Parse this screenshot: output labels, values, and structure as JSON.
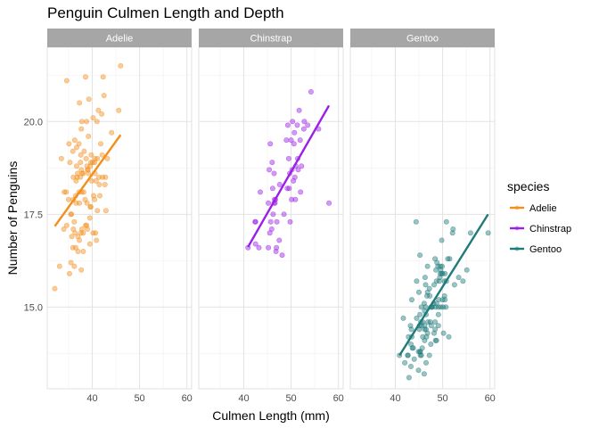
{
  "chart_data": {
    "type": "scatter",
    "title": "Penguin Culmen Length and Depth",
    "xlabel": "Culmen Length (mm)",
    "ylabel": "Number of Penguins",
    "xlim": [
      30.5,
      61
    ],
    "ylim": [
      12.8,
      22.0
    ],
    "x_ticks": [
      40,
      50,
      60
    ],
    "y_ticks": [
      15.0,
      17.5,
      20.0
    ],
    "y_tick_labels": [
      "15.0",
      "17.5",
      "20.0"
    ],
    "facet_by": "species",
    "grid": true,
    "legend": {
      "title": "species",
      "position": "right"
    },
    "series": [
      {
        "name": "Adelie",
        "color": "#F28E1C",
        "trend": {
          "x": [
            32.1,
            46.0
          ],
          "y": [
            17.18,
            19.64
          ]
        },
        "points": [
          [
            32.1,
            15.5
          ],
          [
            33.1,
            16.1
          ],
          [
            33.5,
            19.0
          ],
          [
            34.0,
            17.1
          ],
          [
            34.1,
            18.1
          ],
          [
            34.5,
            18.1
          ],
          [
            34.6,
            21.1
          ],
          [
            34.6,
            17.2
          ],
          [
            35.0,
            17.9
          ],
          [
            35.1,
            19.4
          ],
          [
            35.2,
            15.9
          ],
          [
            35.3,
            18.9
          ],
          [
            35.5,
            16.2
          ],
          [
            35.5,
            17.5
          ],
          [
            35.6,
            17.5
          ],
          [
            35.7,
            16.9
          ],
          [
            35.9,
            19.2
          ],
          [
            35.9,
            16.6
          ],
          [
            36.0,
            18.5
          ],
          [
            36.0,
            17.9
          ],
          [
            36.0,
            17.1
          ],
          [
            36.2,
            17.3
          ],
          [
            36.2,
            16.1
          ],
          [
            36.3,
            19.5
          ],
          [
            36.4,
            17.0
          ],
          [
            36.5,
            18.0
          ],
          [
            36.5,
            16.6
          ],
          [
            36.6,
            17.8
          ],
          [
            36.6,
            18.4
          ],
          [
            36.7,
            19.3
          ],
          [
            36.7,
            18.8
          ],
          [
            36.8,
            18.5
          ],
          [
            36.9,
            18.6
          ],
          [
            37.0,
            16.9
          ],
          [
            37.0,
            16.5
          ],
          [
            37.2,
            18.1
          ],
          [
            37.2,
            19.4
          ],
          [
            37.3,
            20.5
          ],
          [
            37.3,
            17.8
          ],
          [
            37.3,
            16.8
          ],
          [
            37.5,
            18.9
          ],
          [
            37.5,
            18.5
          ],
          [
            37.6,
            19.1
          ],
          [
            37.6,
            17.0
          ],
          [
            37.7,
            18.7
          ],
          [
            37.7,
            16.0
          ],
          [
            37.7,
            19.8
          ],
          [
            37.8,
            18.1
          ],
          [
            37.8,
            17.1
          ],
          [
            37.8,
            20.0
          ],
          [
            37.9,
            18.6
          ],
          [
            38.1,
            18.6
          ],
          [
            38.1,
            17.0
          ],
          [
            38.1,
            16.5
          ],
          [
            38.2,
            18.1
          ],
          [
            38.3,
            19.2
          ],
          [
            38.5,
            17.9
          ],
          [
            38.6,
            21.2
          ],
          [
            38.6,
            17.2
          ],
          [
            38.7,
            19.0
          ],
          [
            38.8,
            17.2
          ],
          [
            38.8,
            20.0
          ],
          [
            38.9,
            17.8
          ],
          [
            38.9,
            18.8
          ],
          [
            39.0,
            17.1
          ],
          [
            39.0,
            18.7
          ],
          [
            39.1,
            18.7
          ],
          [
            39.2,
            19.6
          ],
          [
            39.2,
            18.6
          ],
          [
            39.3,
            20.6
          ],
          [
            39.5,
            17.4
          ],
          [
            39.5,
            16.7
          ],
          [
            39.6,
            17.7
          ],
          [
            39.6,
            18.8
          ],
          [
            39.7,
            18.9
          ],
          [
            39.7,
            17.7
          ],
          [
            39.8,
            19.1
          ],
          [
            39.9,
            18.4
          ],
          [
            40.1,
            18.9
          ],
          [
            40.2,
            17.0
          ],
          [
            40.2,
            20.1
          ],
          [
            40.3,
            18.0
          ],
          [
            40.5,
            17.9
          ],
          [
            40.5,
            18.9
          ],
          [
            40.6,
            18.6
          ],
          [
            40.6,
            19.0
          ],
          [
            40.7,
            17.0
          ],
          [
            40.8,
            18.4
          ],
          [
            40.9,
            16.8
          ],
          [
            41.0,
            20.0
          ],
          [
            41.1,
            17.6
          ],
          [
            41.1,
            19.0
          ],
          [
            41.3,
            20.3
          ],
          [
            41.4,
            18.5
          ],
          [
            41.5,
            18.3
          ],
          [
            41.6,
            18.0
          ],
          [
            41.8,
            19.4
          ],
          [
            42.0,
            20.2
          ],
          [
            42.1,
            19.1
          ],
          [
            42.2,
            18.5
          ],
          [
            42.3,
            21.2
          ],
          [
            42.5,
            20.7
          ],
          [
            42.7,
            18.3
          ],
          [
            42.8,
            18.5
          ],
          [
            42.9,
            17.6
          ],
          [
            43.2,
            19.0
          ],
          [
            44.1,
            19.7
          ],
          [
            45.6,
            20.3
          ],
          [
            46.0,
            21.5
          ]
        ]
      },
      {
        "name": "Chinstrap",
        "color": "#9B1FE8",
        "trend": {
          "x": [
            40.9,
            58.0
          ],
          "y": [
            16.62,
            20.43
          ]
        },
        "points": [
          [
            40.9,
            16.6
          ],
          [
            42.4,
            17.3
          ],
          [
            42.5,
            16.7
          ],
          [
            42.5,
            17.3
          ],
          [
            43.2,
            16.6
          ],
          [
            43.5,
            18.1
          ],
          [
            45.2,
            16.6
          ],
          [
            45.2,
            17.8
          ],
          [
            45.4,
            18.7
          ],
          [
            45.5,
            17.0
          ],
          [
            45.6,
            19.4
          ],
          [
            45.7,
            17.3
          ],
          [
            45.9,
            17.1
          ],
          [
            46.0,
            18.9
          ],
          [
            46.1,
            18.2
          ],
          [
            46.2,
            17.5
          ],
          [
            46.4,
            18.6
          ],
          [
            46.4,
            17.8
          ],
          [
            46.5,
            17.9
          ],
          [
            46.6,
            17.8
          ],
          [
            46.7,
            17.9
          ],
          [
            46.8,
            16.5
          ],
          [
            46.9,
            16.6
          ],
          [
            47.0,
            17.3
          ],
          [
            47.5,
            16.8
          ],
          [
            47.6,
            18.3
          ],
          [
            48.1,
            16.4
          ],
          [
            48.5,
            17.5
          ],
          [
            49.0,
            19.5
          ],
          [
            49.2,
            18.2
          ],
          [
            49.3,
            19.9
          ],
          [
            49.5,
            19.0
          ],
          [
            49.6,
            18.2
          ],
          [
            49.7,
            18.6
          ],
          [
            49.8,
            17.3
          ],
          [
            50.0,
            19.5
          ],
          [
            50.1,
            17.9
          ],
          [
            50.2,
            18.7
          ],
          [
            50.3,
            20.0
          ],
          [
            50.5,
            18.4
          ],
          [
            50.6,
            19.4
          ],
          [
            50.7,
            19.7
          ],
          [
            50.8,
            18.5
          ],
          [
            50.9,
            17.9
          ],
          [
            51.0,
            18.8
          ],
          [
            51.3,
            19.9
          ],
          [
            51.4,
            19.0
          ],
          [
            51.5,
            18.7
          ],
          [
            51.7,
            20.3
          ],
          [
            51.9,
            19.5
          ],
          [
            52.0,
            18.1
          ],
          [
            52.2,
            18.8
          ],
          [
            52.7,
            19.8
          ],
          [
            52.8,
            20.0
          ],
          [
            53.5,
            19.9
          ],
          [
            54.2,
            20.8
          ],
          [
            55.8,
            19.8
          ],
          [
            58.0,
            17.8
          ]
        ]
      },
      {
        "name": "Gentoo",
        "color": "#1F7A7A",
        "trend": {
          "x": [
            40.9,
            59.6
          ],
          "y": [
            13.7,
            17.5
          ]
        },
        "points": [
          [
            40.9,
            13.7
          ],
          [
            41.7,
            14.7
          ],
          [
            42.0,
            13.5
          ],
          [
            42.6,
            13.7
          ],
          [
            42.7,
            13.7
          ],
          [
            42.8,
            14.2
          ],
          [
            42.9,
            13.1
          ],
          [
            43.2,
            14.5
          ],
          [
            43.3,
            14.0
          ],
          [
            43.3,
            13.4
          ],
          [
            43.4,
            14.4
          ],
          [
            43.5,
            14.2
          ],
          [
            43.5,
            15.2
          ],
          [
            43.6,
            13.9
          ],
          [
            43.8,
            13.9
          ],
          [
            44.0,
            13.6
          ],
          [
            44.4,
            17.3
          ],
          [
            44.5,
            14.7
          ],
          [
            44.5,
            15.7
          ],
          [
            44.9,
            13.8
          ],
          [
            44.9,
            13.3
          ],
          [
            45.0,
            15.4
          ],
          [
            45.1,
            14.5
          ],
          [
            45.1,
            14.4
          ],
          [
            45.2,
            13.8
          ],
          [
            45.2,
            14.8
          ],
          [
            45.2,
            16.4
          ],
          [
            45.3,
            13.7
          ],
          [
            45.3,
            13.8
          ],
          [
            45.4,
            14.6
          ],
          [
            45.5,
            13.7
          ],
          [
            45.5,
            14.5
          ],
          [
            45.5,
            15.0
          ],
          [
            45.7,
            13.9
          ],
          [
            45.8,
            14.2
          ],
          [
            45.8,
            14.6
          ],
          [
            46.1,
            13.2
          ],
          [
            46.1,
            15.1
          ],
          [
            46.2,
            14.1
          ],
          [
            46.2,
            14.4
          ],
          [
            46.2,
            14.5
          ],
          [
            46.2,
            14.9
          ],
          [
            46.3,
            15.8
          ],
          [
            46.4,
            15.0
          ],
          [
            46.4,
            15.6
          ],
          [
            46.5,
            13.5
          ],
          [
            46.5,
            14.4
          ],
          [
            46.5,
            14.8
          ],
          [
            46.6,
            14.2
          ],
          [
            46.7,
            15.3
          ],
          [
            46.8,
            14.3
          ],
          [
            46.8,
            15.4
          ],
          [
            46.8,
            16.1
          ],
          [
            46.9,
            14.6
          ],
          [
            47.2,
            13.7
          ],
          [
            47.2,
            15.5
          ],
          [
            47.3,
            15.3
          ],
          [
            47.4,
            14.6
          ],
          [
            47.5,
            14.0
          ],
          [
            47.5,
            15.0
          ],
          [
            47.6,
            14.5
          ],
          [
            47.7,
            15.0
          ],
          [
            47.8,
            15.0
          ],
          [
            48.1,
            15.1
          ],
          [
            48.2,
            14.3
          ],
          [
            48.2,
            15.6
          ],
          [
            48.4,
            14.4
          ],
          [
            48.4,
            14.6
          ],
          [
            48.4,
            16.3
          ],
          [
            48.5,
            14.1
          ],
          [
            48.5,
            15.0
          ],
          [
            48.6,
            16.0
          ],
          [
            48.7,
            14.1
          ],
          [
            48.7,
            15.1
          ],
          [
            48.7,
            15.7
          ],
          [
            48.8,
            16.2
          ],
          [
            49.0,
            16.1
          ],
          [
            49.1,
            14.5
          ],
          [
            49.1,
            14.8
          ],
          [
            49.1,
            15.0
          ],
          [
            49.2,
            15.2
          ],
          [
            49.3,
            15.7
          ],
          [
            49.4,
            15.8
          ],
          [
            49.5,
            15.9
          ],
          [
            49.5,
            16.1
          ],
          [
            49.6,
            15.0
          ],
          [
            49.6,
            16.0
          ],
          [
            49.8,
            15.9
          ],
          [
            49.8,
            16.8
          ],
          [
            49.9,
            16.1
          ],
          [
            50.0,
            15.2
          ],
          [
            50.0,
            15.9
          ],
          [
            50.1,
            15.0
          ],
          [
            50.2,
            14.3
          ],
          [
            50.4,
            15.3
          ],
          [
            50.4,
            15.7
          ],
          [
            50.5,
            15.2
          ],
          [
            50.5,
            15.9
          ],
          [
            50.7,
            15.0
          ],
          [
            50.8,
            15.7
          ],
          [
            50.8,
            17.3
          ],
          [
            51.1,
            16.3
          ],
          [
            51.3,
            14.2
          ],
          [
            51.5,
            16.3
          ],
          [
            52.1,
            17.0
          ],
          [
            52.2,
            17.1
          ],
          [
            52.5,
            15.6
          ],
          [
            53.4,
            15.8
          ],
          [
            54.3,
            15.7
          ],
          [
            55.1,
            16.0
          ],
          [
            55.9,
            17.0
          ],
          [
            59.6,
            17.0
          ]
        ]
      }
    ]
  }
}
